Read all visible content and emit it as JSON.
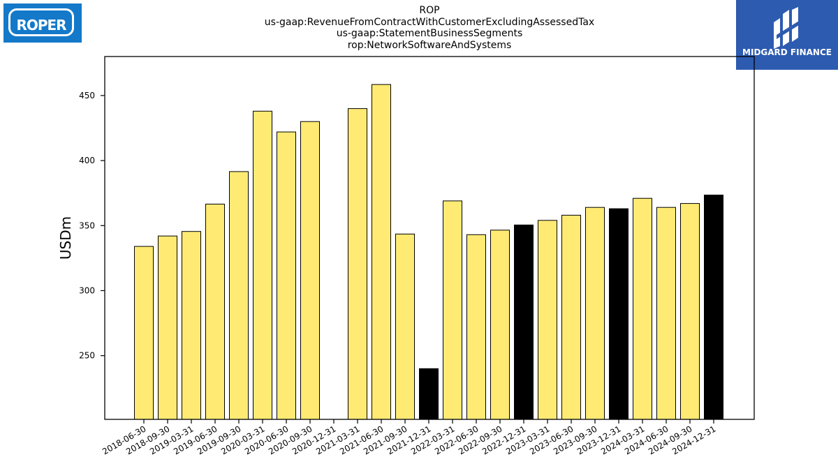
{
  "title_lines": [
    "ROP",
    "us-gaap:RevenueFromContractWithCustomerExcludingAssessedTax",
    "us-gaap:StatementBusinessSegments",
    "rop:NetworkSoftwareAndSystems"
  ],
  "logos": {
    "left_text": "ROPER",
    "right_text": "MIDGARD FINANCE"
  },
  "colors": {
    "bar_default": "#ffeb74",
    "bar_highlight": "#000000",
    "bar_edge": "#000000",
    "left_logo_bg": "#1479c9",
    "right_logo_bg": "#2d5bb0"
  },
  "chart_data": {
    "type": "bar",
    "categories": [
      "2018-06-30",
      "2018-09-30",
      "2019-03-31",
      "2019-06-30",
      "2019-09-30",
      "2020-03-31",
      "2020-06-30",
      "2020-09-30",
      "2020-12-31",
      "2021-03-31",
      "2021-06-30",
      "2021-09-30",
      "2021-12-31",
      "2022-03-31",
      "2022-06-30",
      "2022-09-30",
      "2022-12-31",
      "2023-03-31",
      "2023-06-30",
      "2023-09-30",
      "2023-12-31",
      "2024-03-31",
      "2024-06-30",
      "2024-09-30",
      "2024-12-31"
    ],
    "values": [
      334,
      342,
      345.5,
      366.5,
      391.5,
      438,
      422,
      430,
      null,
      440,
      458.5,
      343.5,
      240,
      369,
      343,
      346.5,
      350.5,
      354,
      358,
      364,
      363,
      371,
      364,
      367,
      373.5
    ],
    "highlight": [
      false,
      false,
      false,
      false,
      false,
      false,
      false,
      false,
      false,
      false,
      false,
      false,
      true,
      false,
      false,
      false,
      true,
      false,
      false,
      false,
      true,
      false,
      false,
      false,
      true
    ],
    "xlabel": "",
    "ylabel": "USDm",
    "ylim": [
      201,
      480
    ],
    "yticks": [
      250,
      300,
      350,
      400,
      450
    ],
    "grid": false,
    "legend": "none"
  }
}
